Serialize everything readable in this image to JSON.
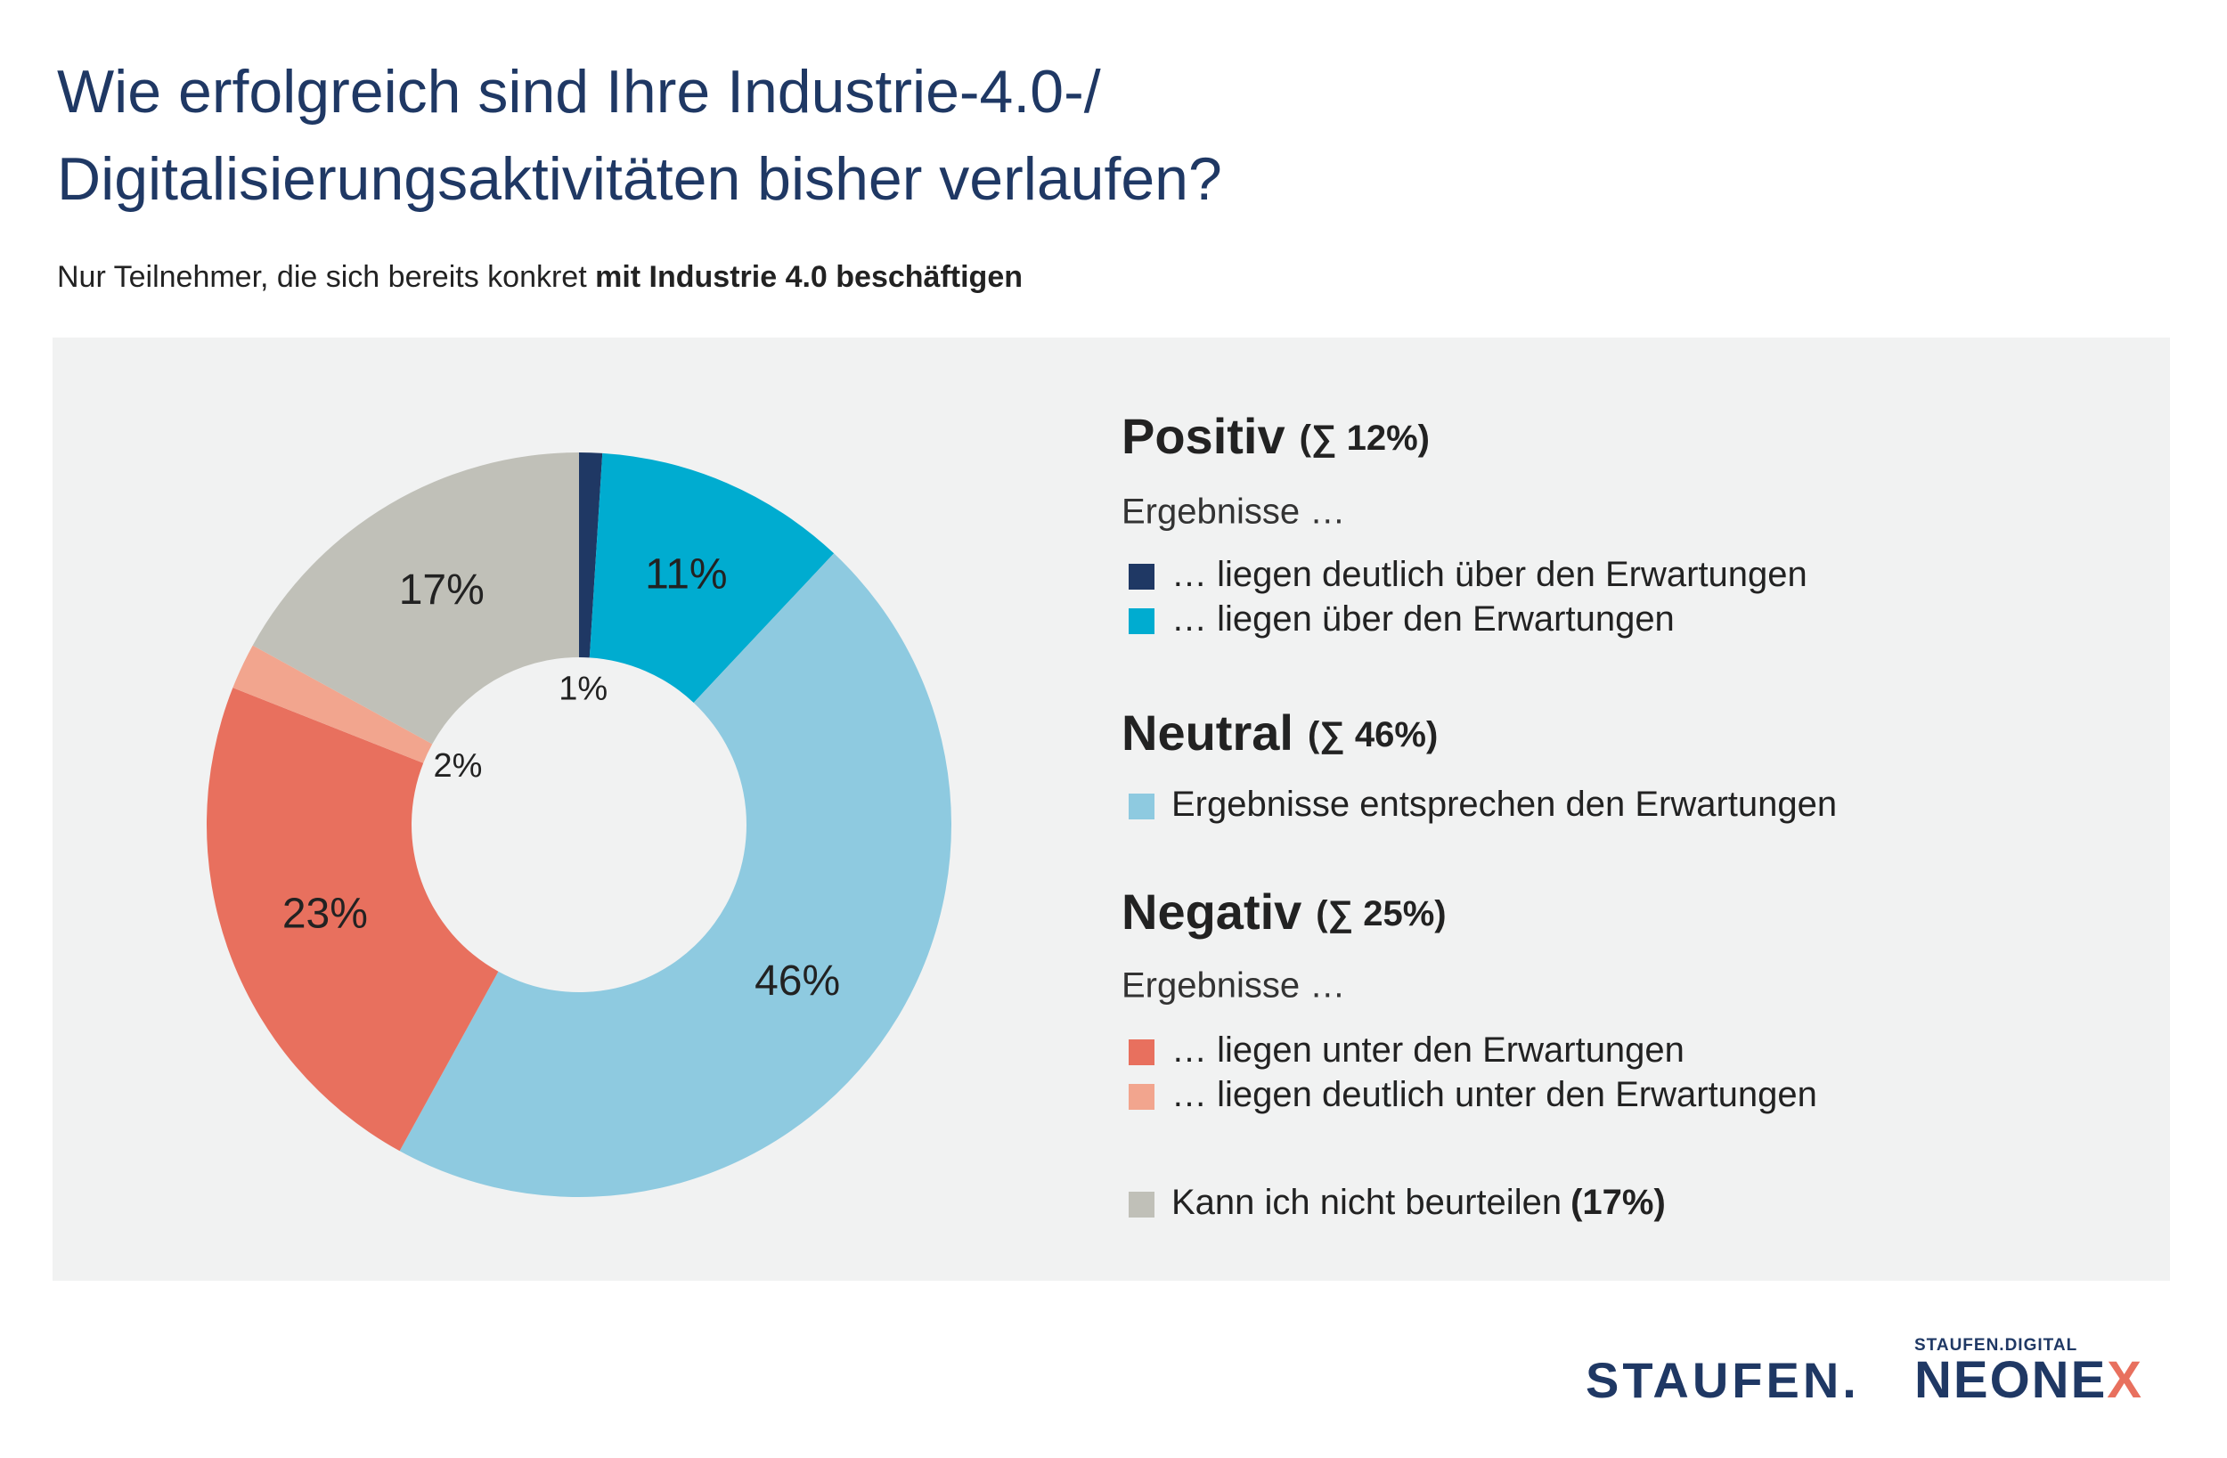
{
  "chart_data": {
    "type": "donut",
    "title": [
      "Wie erfolgreich sind Ihre Industrie-4.0-/",
      "Digitalisierungsaktivitäten bisher verlaufen?"
    ],
    "subtitle": [
      "Nur Teilnehmer, die sich bereits konkret ",
      "mit Industrie 4.0 beschäftigen"
    ],
    "categories": [
      "… liegen deutlich über den Erwartungen",
      "… liegen über den Erwartungen",
      "Ergebnisse entsprechen den Erwartungen",
      "… liegen unter den Erwartungen",
      "… liegen deutlich unter den Erwartungen",
      "Kann ich nicht beurteilen"
    ],
    "values": [
      1,
      11,
      46,
      23,
      2,
      17
    ],
    "value_labels": [
      "1%",
      "11%",
      "46%",
      "23%",
      "2%",
      "17%"
    ],
    "colors": [
      "#1f3864",
      "#00acd0",
      "#8ecae0",
      "#e8705e",
      "#f2a58e",
      "#c0c0b8"
    ],
    "legend_groups": [
      {
        "title": "Positiv",
        "sum": "(∑ 12%)",
        "note": "Ergebnisse …"
      },
      {
        "title": "Neutral",
        "sum": "(∑ 46%)"
      },
      {
        "title": "Negativ",
        "sum": "(∑ 25%)",
        "note": "Ergebnisse …"
      }
    ],
    "unrated_sum": "(17%)",
    "logos": {
      "staufen": "STAUFEN.",
      "neonex_tag": "STAUFEN.DIGITAL",
      "neonex": [
        "NEONE",
        "X"
      ]
    }
  }
}
